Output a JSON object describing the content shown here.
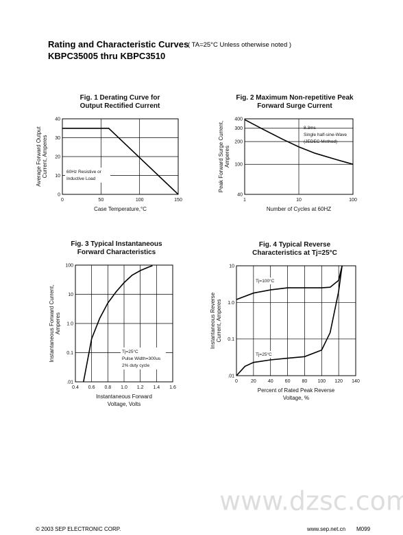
{
  "header": {
    "title": "Rating and Characteristic Curves",
    "condition": "( TA=25°C Unless otherwise noted )",
    "subtitle": "KBPC35005 thru KBPC3510"
  },
  "chart_data": [
    {
      "type": "line",
      "title": [
        "Fig. 1 Derating Curve for",
        "Output Rectified Current"
      ],
      "xlabel": "Case Temperature,°C",
      "ylabel": [
        "Average Forward Output",
        "Current, Amperes"
      ],
      "xlim": [
        0,
        150
      ],
      "xticks": [
        0,
        50,
        100,
        150
      ],
      "ylim": [
        0,
        40
      ],
      "yticks": [
        0,
        10,
        20,
        30,
        40
      ],
      "grid": true,
      "annotation": [
        "60Hz Resistive or",
        "Inductive Load"
      ],
      "series": [
        {
          "color": "#000000",
          "x": [
            0,
            60,
            150
          ],
          "values": [
            35,
            35,
            0
          ]
        }
      ]
    },
    {
      "type": "line",
      "title": [
        "Fig. 2 Maximum Non-repetitive Peak",
        "Forward Surge Current"
      ],
      "xlabel": "Number of Cycles at 60HZ",
      "ylabel": [
        "Peak Forward Surge Current,",
        "Amperes"
      ],
      "xscale": "log",
      "yscale": "log",
      "xlim": [
        1,
        100
      ],
      "xticks": [
        1,
        10,
        100
      ],
      "ylim": [
        40,
        400
      ],
      "yticks": [
        40,
        100,
        200,
        300,
        400
      ],
      "grid": true,
      "annotation": [
        "8.3ms",
        "Single half-sine-Wave",
        "(JEDEC Method)"
      ],
      "series": [
        {
          "color": "#000000",
          "x": [
            1,
            2,
            5,
            10,
            20,
            50,
            100
          ],
          "values": [
            390,
            300,
            215,
            170,
            140,
            115,
            100
          ]
        }
      ]
    },
    {
      "type": "line",
      "title": [
        "Fig. 3 Typical Instantaneous",
        "Forward Characteristics"
      ],
      "xlabel": [
        "Instantaneous Forward",
        "Voltage, Volts"
      ],
      "ylabel": [
        "Instantaneous Forward Current,",
        "Amperes"
      ],
      "yscale": "log",
      "xlim": [
        0.4,
        1.6
      ],
      "xticks": [
        0.4,
        0.6,
        0.8,
        {
          "value": 1,
          "label": "1.0"
        },
        1.2,
        1.4,
        1.6
      ],
      "ylim": [
        0.01,
        100
      ],
      "yticks": [
        {
          "value": 0.01,
          "label": ".01"
        },
        0.1,
        {
          "value": 1,
          "label": "1.0"
        },
        10,
        100
      ],
      "grid": true,
      "annotation": [
        "Tj=25°C",
        "Pulse Width=300us",
        "2% duty cycle"
      ],
      "series": [
        {
          "color": "#000000",
          "x": [
            0.5,
            0.6,
            0.7,
            0.8,
            0.9,
            1.0,
            1.1,
            1.2,
            1.3,
            1.35
          ],
          "values": [
            0.01,
            0.3,
            1.5,
            5,
            12,
            25,
            45,
            65,
            85,
            95
          ]
        }
      ]
    },
    {
      "type": "line",
      "title": [
        "Fig. 4 Typical Reverse",
        "Characteristics at Tj=25°C"
      ],
      "xlabel": [
        "Percent of Rated Peak Reverse",
        "Voltage, %"
      ],
      "ylabel": [
        "Instantaneous Reverse",
        "Current, Amperes"
      ],
      "yscale": "log",
      "xlim": [
        0,
        140
      ],
      "xticks": [
        0,
        20,
        40,
        60,
        80,
        100,
        120,
        140
      ],
      "ylim": [
        0.01,
        10
      ],
      "yticks": [
        {
          "value": 0.01,
          "label": ".01"
        },
        0.1,
        {
          "value": 1,
          "label": "1.0"
        },
        10
      ],
      "grid": true,
      "series": [
        {
          "name": "Tj=100°C",
          "color": "#000000",
          "x": [
            0,
            20,
            40,
            60,
            80,
            100,
            110,
            120,
            124
          ],
          "values": [
            1.2,
            1.8,
            2.2,
            2.5,
            2.5,
            2.5,
            2.6,
            4,
            10
          ]
        },
        {
          "name": "Tj=25°C",
          "color": "#000000",
          "x": [
            0,
            10,
            20,
            40,
            60,
            80,
            100,
            110,
            120,
            124
          ],
          "values": [
            0.01,
            0.018,
            0.023,
            0.027,
            0.03,
            0.033,
            0.05,
            0.15,
            2,
            10
          ]
        }
      ]
    }
  ],
  "footer": {
    "copyright": "© 2003  SEP ELECTRONIC CORP.",
    "website": "www.sep.net.cn",
    "code": "M099"
  },
  "watermark": "www.dzsc.com"
}
